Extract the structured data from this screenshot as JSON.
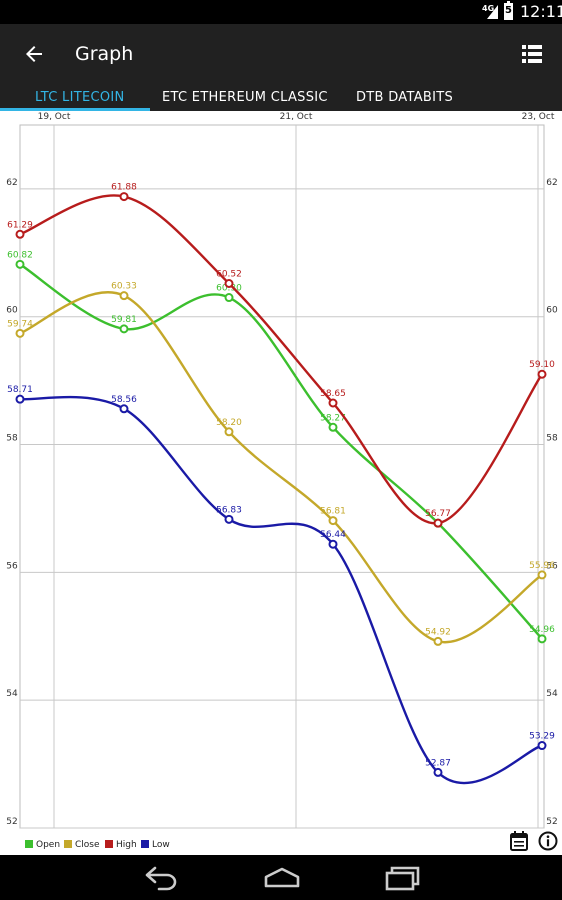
{
  "status_bar": {
    "network": "4G",
    "battery": "5",
    "time": "12:11"
  },
  "app_bar": {
    "title": "Graph",
    "back_icon": "arrow-left-icon",
    "menu_icon": "list-view-icon"
  },
  "tabs": [
    {
      "label": "LTC LITECOIN",
      "active": true
    },
    {
      "label": "ETC ETHEREUM CLASSIC",
      "active": false
    },
    {
      "label": "DTB DATABITS",
      "active": false
    }
  ],
  "colors": {
    "open": "#3cbf2e",
    "close": "#c4a82a",
    "high": "#b71c1c",
    "low": "#1a1aa6",
    "accent": "#33b5e5"
  },
  "chart_data": {
    "type": "line",
    "x_tick_labels": [
      "19, Oct",
      "21, Oct",
      "23, Oct"
    ],
    "y_ticks": [
      52,
      54,
      56,
      58,
      60,
      62
    ],
    "ylim": [
      52,
      63
    ],
    "series": [
      {
        "name": "Open",
        "color": "#3cbf2e",
        "values": [
          60.82,
          59.81,
          60.3,
          58.27,
          56.77,
          54.96
        ],
        "labels": [
          "60.82",
          "59.81",
          "60.30",
          "58.27",
          "",
          "54.96"
        ]
      },
      {
        "name": "Close",
        "color": "#c4a82a",
        "values": [
          59.74,
          60.33,
          58.2,
          56.81,
          54.92,
          55.96
        ],
        "labels": [
          "59.74",
          "60.33",
          "58.20",
          "56.81",
          "54.92",
          "55.96"
        ]
      },
      {
        "name": "High",
        "color": "#b71c1c",
        "values": [
          61.29,
          61.88,
          60.52,
          58.65,
          56.77,
          59.1
        ],
        "labels": [
          "61.29",
          "61.88",
          "60.52",
          "58.65",
          "56.77",
          "59.10"
        ]
      },
      {
        "name": "Low",
        "color": "#1a1aa6",
        "values": [
          58.71,
          58.56,
          56.83,
          56.44,
          52.87,
          53.29
        ],
        "labels": [
          "58.71",
          "58.56",
          "56.83",
          "56.44",
          "52.87",
          "53.29"
        ]
      }
    ]
  },
  "toolbar_icons": {
    "calendar": "calendar-icon",
    "info": "info-icon"
  },
  "nav_bar": {
    "back": "back-icon",
    "home": "home-icon",
    "recents": "recents-icon"
  }
}
